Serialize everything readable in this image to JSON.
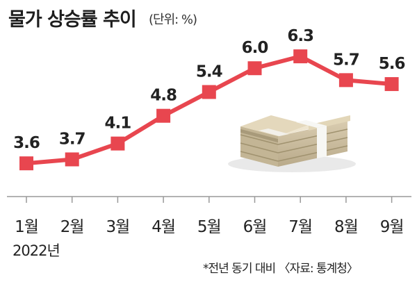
{
  "header": {
    "title": "물가 상승률 추이",
    "unit": "(단위: %)"
  },
  "year_label": "2022년",
  "footnote": "*전년 동기 대비 〈자료: 통계청〉",
  "colors": {
    "line": "#e8464f",
    "marker": "#e8464f",
    "axis": "#999999"
  },
  "decoration": "money-stack-icon",
  "chart_data": {
    "type": "line",
    "title": "물가 상승률 추이",
    "categories": [
      "1월",
      "2월",
      "3월",
      "4월",
      "5월",
      "6월",
      "7월",
      "8월",
      "9월"
    ],
    "values": [
      3.6,
      3.7,
      4.1,
      4.8,
      5.4,
      6.0,
      6.3,
      5.7,
      5.6
    ],
    "value_labels": [
      "3.6",
      "3.7",
      "4.1",
      "4.8",
      "5.4",
      "6.0",
      "6.3",
      "5.7",
      "5.6"
    ],
    "xlabel": "",
    "ylabel": "",
    "ylim": [
      3.2,
      6.6
    ],
    "grid": false,
    "legend": "none"
  }
}
